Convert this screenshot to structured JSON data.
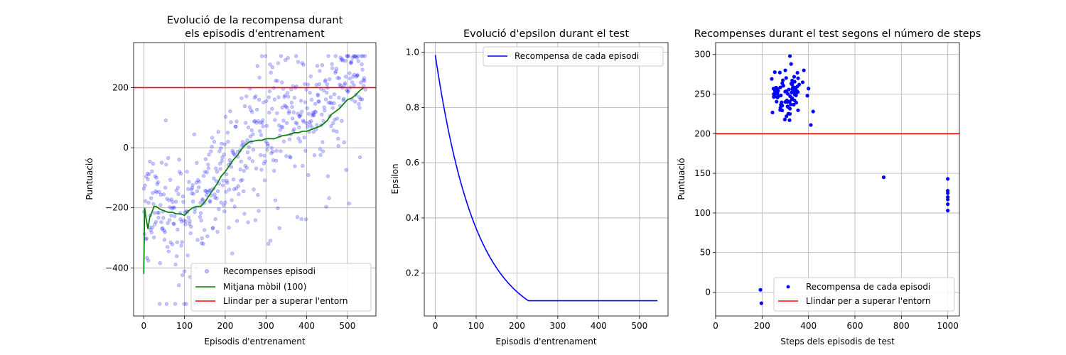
{
  "chart_data": [
    {
      "type": "scatter",
      "title_lines": [
        "Evolució de la recompensa durant",
        "els episodis d'entrenament"
      ],
      "xlabel": "Episodis d'entrenament",
      "ylabel": "Puntuació",
      "xlim": [
        -25,
        570
      ],
      "ylim": [
        -560,
        350
      ],
      "xticks": [
        0,
        100,
        200,
        300,
        400,
        500
      ],
      "yticks": [
        -400,
        -200,
        0,
        200
      ],
      "grid": true,
      "legend_position": "lower-right",
      "threshold": 200,
      "n_episodes": 545,
      "colors": {
        "points": "#0000ff",
        "moving_average": "#008000",
        "threshold": "#ff0000"
      },
      "series": [
        {
          "name": "Recompenses episodi",
          "kind": "scatter"
        },
        {
          "name": "Mitjana mòbil (100)",
          "kind": "line",
          "x": [
            0,
            2,
            5,
            10,
            15,
            20,
            25,
            30,
            40,
            50,
            60,
            70,
            80,
            90,
            100,
            110,
            120,
            130,
            140,
            150,
            160,
            170,
            180,
            190,
            200,
            210,
            220,
            230,
            240,
            250,
            260,
            270,
            280,
            290,
            300,
            310,
            320,
            330,
            340,
            350,
            360,
            370,
            380,
            390,
            400,
            410,
            420,
            430,
            440,
            450,
            460,
            470,
            480,
            490,
            500,
            510,
            520,
            530,
            540
          ],
          "y": [
            -420,
            -200,
            -230,
            -270,
            -230,
            -215,
            -195,
            -195,
            -205,
            -210,
            -215,
            -215,
            -220,
            -220,
            -225,
            -210,
            -200,
            -195,
            -195,
            -180,
            -160,
            -140,
            -120,
            -95,
            -80,
            -60,
            -40,
            -25,
            -5,
            10,
            20,
            22,
            25,
            25,
            30,
            30,
            30,
            35,
            40,
            42,
            45,
            50,
            50,
            55,
            55,
            60,
            65,
            70,
            78,
            90,
            110,
            120,
            130,
            145,
            160,
            165,
            175,
            190,
            200
          ]
        },
        {
          "name": "Llindar per a superar l'entorn",
          "kind": "hline"
        }
      ]
    },
    {
      "type": "line",
      "title": "Evolució d'epsilon durant el test",
      "xlabel": "Episodis d'entrenament",
      "ylabel": "Epsilon",
      "xlim": [
        -27,
        570
      ],
      "ylim": [
        0.045,
        1.035
      ],
      "xticks": [
        0,
        100,
        200,
        300,
        400,
        500
      ],
      "yticks": [
        0.2,
        0.4,
        0.6,
        0.8,
        1.0
      ],
      "grid": true,
      "legend_position": "upper-right",
      "n_episodes": 545,
      "epsilon_start": 0.99,
      "epsilon_decay": 0.99,
      "epsilon_min": 0.1,
      "colors": {
        "line": "#0000ff"
      },
      "series": [
        {
          "name": "Recompensa de cada episodi"
        }
      ]
    },
    {
      "type": "scatter",
      "title": "Recompenses durant el test segons el número de steps",
      "xlabel": "Steps dels episodis de test",
      "ylabel": "Puntuació",
      "xlim": [
        0,
        1050
      ],
      "ylim": [
        -30,
        315
      ],
      "xticks": [
        0,
        200,
        400,
        600,
        800,
        1000
      ],
      "yticks": [
        0,
        50,
        100,
        150,
        200,
        250,
        300
      ],
      "grid": true,
      "legend_position": "lower-right",
      "threshold": 200,
      "colors": {
        "points": "#0000ff",
        "threshold": "#ff0000"
      },
      "series": [
        {
          "name": "Recompensa de cada episodi",
          "points": [
            [
              193,
              3
            ],
            [
              197,
              -14
            ],
            [
              724,
              145
            ],
            [
              1000,
              143
            ],
            [
              1000,
              128
            ],
            [
              1000,
              125
            ],
            [
              1000,
              120
            ],
            [
              1000,
              117
            ],
            [
              1000,
              111
            ],
            [
              1000,
              103
            ],
            [
              420,
              228
            ],
            [
              410,
              211
            ],
            [
              400,
              257
            ],
            [
              395,
              248
            ],
            [
              380,
              280
            ],
            [
              375,
              265
            ],
            [
              360,
              262
            ],
            [
              355,
              270
            ],
            [
              345,
              250
            ],
            [
              340,
              242
            ],
            [
              320,
              298
            ],
            [
              325,
              288
            ],
            [
              300,
              280
            ],
            [
              310,
              240
            ],
            [
              320,
              225
            ],
            [
              298,
              218
            ],
            [
              305,
              222
            ],
            [
              278,
              230
            ]
          ]
        },
        {
          "name": "Llindar per a superar l'entorn",
          "kind": "hline"
        }
      ]
    }
  ]
}
